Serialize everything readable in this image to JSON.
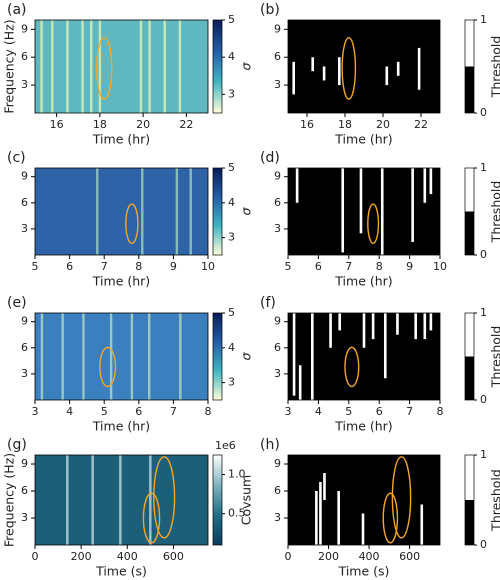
{
  "chart_data": [
    {
      "type": "heatmap",
      "label": "(a)",
      "xlabel": "Time (hr)",
      "ylabel": "Frequency (Hz)",
      "xlim": [
        15,
        23
      ],
      "xticks": [
        16,
        18,
        20,
        22
      ],
      "ylim": [
        0,
        10
      ],
      "yticks": [
        3,
        6,
        9
      ],
      "clim": [
        2.5,
        5
      ],
      "cticks": [
        3,
        4,
        5
      ],
      "clabel": "σ",
      "colormap": [
        "#ffffd9",
        "#41b6c4",
        "#225ea8",
        "#081d58"
      ],
      "background": "#5fb8c0",
      "stripe_color": "#e8f5b0",
      "stripes": [
        15.3,
        15.8,
        16.5,
        17.2,
        17.6,
        18.0,
        19.9,
        20.3,
        21.0,
        21.7
      ],
      "ellipse_color": "#f5a623",
      "ellipses": [
        {
          "x": 18.2,
          "y": 4.8,
          "width": 0.7,
          "height": 6.6
        }
      ]
    },
    {
      "type": "binary",
      "label": "(b)",
      "xlabel": "Time (hr)",
      "xlim": [
        15,
        23
      ],
      "xticks": [
        16,
        18,
        20,
        22
      ],
      "ylim": [
        0,
        10
      ],
      "yticks": [
        3,
        6,
        9
      ],
      "clim": [
        0,
        1
      ],
      "cticks": [
        0,
        1
      ],
      "clabel": "Threshold",
      "colormap": [
        "#000000",
        "#ffffff"
      ],
      "segments": [
        [
          15.3,
          2,
          5.5
        ],
        [
          16.3,
          4.5,
          6
        ],
        [
          16.9,
          3.5,
          5
        ],
        [
          17.7,
          3,
          6
        ],
        [
          20.2,
          3,
          5
        ],
        [
          20.8,
          4,
          5.5
        ],
        [
          21.9,
          2.5,
          7
        ]
      ],
      "ellipse_color": "#f5a623",
      "ellipses": [
        {
          "x": 18.2,
          "y": 4.8,
          "width": 0.7,
          "height": 6.6
        }
      ]
    },
    {
      "type": "heatmap",
      "label": "(c)",
      "xlabel": "Time (hr)",
      "xlim": [
        5,
        10
      ],
      "xticks": [
        5,
        6,
        7,
        8,
        9,
        10
      ],
      "ylim": [
        0,
        10
      ],
      "yticks": [
        3,
        6,
        9
      ],
      "clim": [
        2.5,
        5
      ],
      "cticks": [
        3,
        4,
        5
      ],
      "clabel": "σ",
      "colormap": [
        "#ffffd9",
        "#41b6c4",
        "#225ea8",
        "#081d58"
      ],
      "background": "#2f63a8",
      "stripe_color": "#a6dcc4",
      "stripes": [
        6.8,
        8.1,
        9.1,
        9.5
      ],
      "ellipse_color": "#f5a623",
      "ellipses": [
        {
          "x": 7.8,
          "y": 3.6,
          "width": 0.35,
          "height": 4.5
        }
      ]
    },
    {
      "type": "binary",
      "label": "(d)",
      "xlabel": "Time (hr)",
      "xlim": [
        5,
        10
      ],
      "xticks": [
        5,
        6,
        7,
        8,
        9,
        10
      ],
      "ylim": [
        0,
        10
      ],
      "yticks": [
        3,
        6,
        9
      ],
      "clim": [
        0,
        1
      ],
      "cticks": [
        0,
        1
      ],
      "clabel": "Threshold",
      "colormap": [
        "#000000",
        "#ffffff"
      ],
      "segments": [
        [
          5.3,
          6,
          10
        ],
        [
          6.8,
          0.3,
          10
        ],
        [
          7.4,
          2.5,
          10
        ],
        [
          8.1,
          0,
          10
        ],
        [
          9.1,
          1.5,
          10
        ],
        [
          9.5,
          6,
          10
        ],
        [
          9.7,
          7,
          10
        ]
      ],
      "ellipse_color": "#f5a623",
      "ellipses": [
        {
          "x": 7.8,
          "y": 3.6,
          "width": 0.35,
          "height": 4.5
        }
      ]
    },
    {
      "type": "heatmap",
      "label": "(e)",
      "xlabel": "Time (hr)",
      "xlim": [
        3,
        8
      ],
      "xticks": [
        3,
        4,
        5,
        6,
        7,
        8
      ],
      "ylim": [
        0,
        10
      ],
      "yticks": [
        3,
        6,
        9
      ],
      "clim": [
        2.5,
        5
      ],
      "cticks": [
        3,
        4,
        5
      ],
      "clabel": "σ",
      "colormap": [
        "#ffffd9",
        "#41b6c4",
        "#225ea8",
        "#081d58"
      ],
      "background": "#3b7fbf",
      "stripe_color": "#b6e3c0",
      "stripes": [
        3.2,
        3.8,
        4.4,
        5.2,
        5.8,
        6.3,
        7.2
      ],
      "ellipse_color": "#f5a623",
      "ellipses": [
        {
          "x": 5.1,
          "y": 3.8,
          "width": 0.45,
          "height": 4.5
        }
      ]
    },
    {
      "type": "binary",
      "label": "(f)",
      "xlabel": "Time (hr)",
      "xlim": [
        3,
        8
      ],
      "xticks": [
        3,
        4,
        5,
        6,
        7,
        8
      ],
      "ylim": [
        0,
        10
      ],
      "yticks": [
        3,
        6,
        9
      ],
      "clim": [
        0,
        1
      ],
      "cticks": [
        0,
        1
      ],
      "clabel": "Threshold",
      "colormap": [
        "#000000",
        "#ffffff"
      ],
      "segments": [
        [
          3.2,
          0.5,
          10
        ],
        [
          3.4,
          0,
          4
        ],
        [
          3.8,
          0,
          10
        ],
        [
          4.4,
          6,
          10
        ],
        [
          4.7,
          8,
          10
        ],
        [
          5.5,
          6,
          10
        ],
        [
          5.8,
          7,
          10
        ],
        [
          6.2,
          2.5,
          10
        ],
        [
          6.6,
          7.5,
          10
        ],
        [
          7.2,
          7,
          10
        ],
        [
          7.5,
          7,
          10
        ],
        [
          7.7,
          8,
          10
        ]
      ],
      "ellipse_color": "#f5a623",
      "ellipses": [
        {
          "x": 5.1,
          "y": 3.8,
          "width": 0.45,
          "height": 4.5
        }
      ]
    },
    {
      "type": "heatmap",
      "label": "(g)",
      "xlabel": "Time (s)",
      "ylabel": "Frequency (Hz)",
      "xlim": [
        0,
        750
      ],
      "xticks": [
        0,
        200,
        400,
        600
      ],
      "ylim": [
        0,
        10
      ],
      "yticks": [
        3,
        6,
        9
      ],
      "clim": [
        0.1,
        1.25
      ],
      "cticks": [
        0.5,
        {
          "value": 1,
          "label": "1.0"
        }
      ],
      "clabel": "Covsum",
      "cbar_offset": "1e6",
      "colormap": [
        "#0b3c5d",
        "#1e6f86",
        "#7fb3c0",
        "#ffffff"
      ],
      "background": "#1d5f78",
      "stripe_color": "#cfe6ea",
      "stripes": [
        140,
        250,
        370,
        500
      ],
      "ellipse_color": "#f5a623",
      "ellipses": [
        {
          "x": 505,
          "y": 3,
          "width": 70,
          "height": 5.5
        },
        {
          "x": 560,
          "y": 5.3,
          "width": 90,
          "height": 9
        }
      ]
    },
    {
      "type": "binary",
      "label": "(h)",
      "xlabel": "Time (s)",
      "xlim": [
        0,
        750
      ],
      "xticks": [
        0,
        200,
        400,
        600
      ],
      "ylim": [
        0,
        10
      ],
      "yticks": [
        3,
        6,
        9
      ],
      "clim": [
        0,
        1
      ],
      "cticks": [
        0,
        1
      ],
      "clabel": "Threshold",
      "colormap": [
        "#000000",
        "#ffffff"
      ],
      "segments": [
        [
          140,
          0,
          6
        ],
        [
          160,
          0,
          7
        ],
        [
          180,
          5,
          8
        ],
        [
          250,
          0,
          6
        ],
        [
          370,
          0,
          3.5
        ],
        [
          660,
          0,
          4.5
        ]
      ],
      "ellipse_color": "#f5a623",
      "ellipses": [
        {
          "x": 505,
          "y": 3,
          "width": 70,
          "height": 5.5
        },
        {
          "x": 560,
          "y": 5.3,
          "width": 90,
          "height": 9
        }
      ]
    }
  ]
}
